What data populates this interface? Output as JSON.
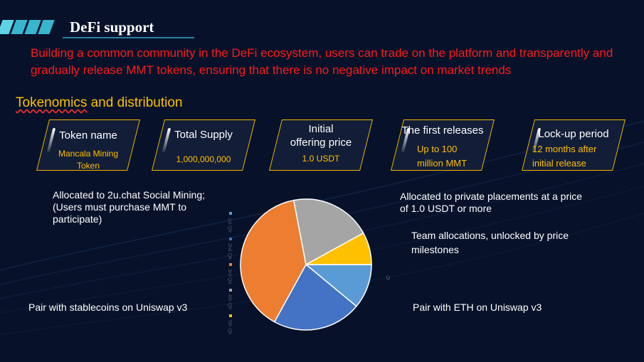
{
  "header": {
    "title": "DeFi support"
  },
  "intro": "Building a common community in the DeFi ecosystem, users can trade on the platform and transparently and gradually release MMT tokens, ensuring that there is no negative impact on market trends",
  "subhead": {
    "underlined": "Tokenomics",
    "rest": " and distribution"
  },
  "cards": [
    {
      "title": "Token name",
      "value": "Mancala Mining Token"
    },
    {
      "title": "Total Supply",
      "value": "1,000,000,000"
    },
    {
      "title": "Initial offering price",
      "value": "1.0 USDT"
    },
    {
      "title": "The first releases",
      "value": "Up to 100 million MMT"
    },
    {
      "title": "Lock-up period",
      "value": "12 months after initial release"
    }
  ],
  "labels": {
    "social_mining": "Allocated to 2u.chat Social Mining; (Users must purchase MMT to participate)",
    "private": "Allocated to private placements at a price of 1.0 USDT or more",
    "team": "Team allocations, unlocked by price milestones",
    "stablecoins": "Pair with stablecoins on Uniswap v3",
    "eth": "Pair with ETH on Uniswap v3"
  },
  "chart_data": {
    "type": "pie",
    "series_label": "Sales",
    "categories": [
      "1st Qtr",
      "2nd Qtr",
      "3rd Qtr",
      "4th Qtr",
      "5th Qtr"
    ],
    "values": [
      11,
      22,
      39,
      20,
      8
    ],
    "colors": [
      "#5b9bd5",
      "#4472c4",
      "#ed7d31",
      "#a5a5a5",
      "#ffc000"
    ]
  },
  "colors": {
    "accent": "#ffc000",
    "intro": "#ff1a1a",
    "header_deco": "#38b6cf",
    "background": "#07122a"
  }
}
